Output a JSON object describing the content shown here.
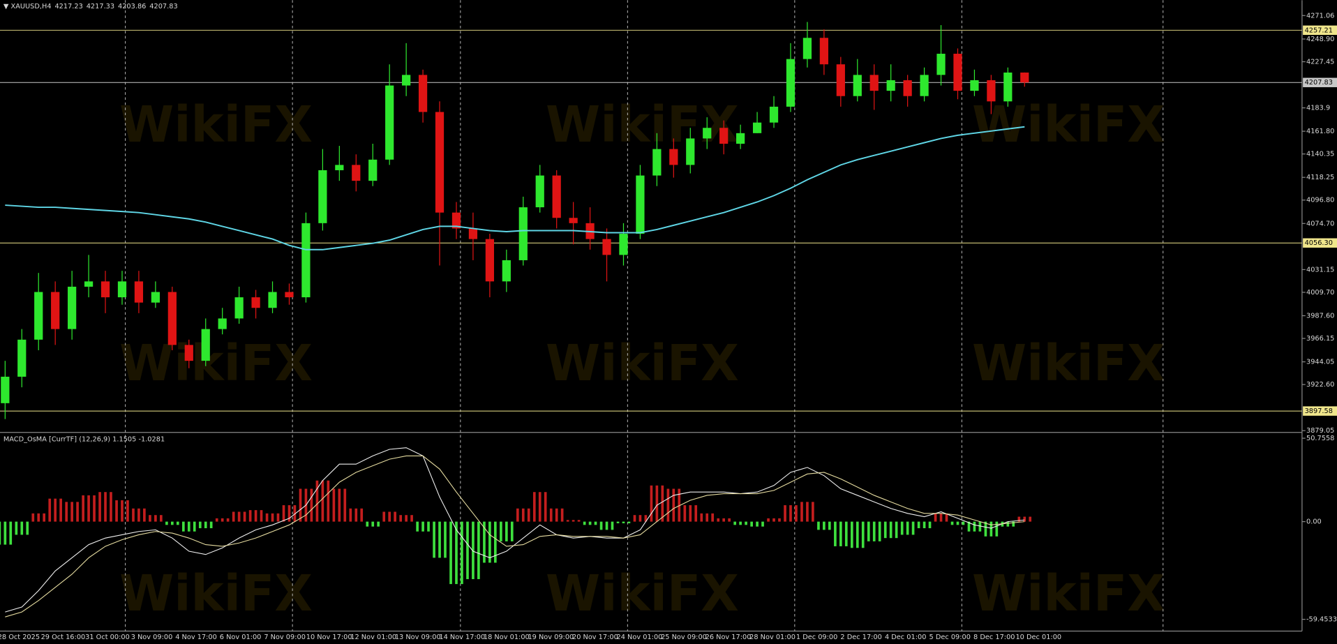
{
  "watermark": "WikiFX",
  "chart_data": [
    {
      "type": "candlestick",
      "symbol": "XAUUSD,H4",
      "open": [
        3905,
        3930,
        3965,
        4010,
        3975,
        4015,
        4020,
        4005,
        4020,
        4000,
        4010,
        3960,
        3945,
        3975,
        3985,
        4005,
        3995,
        4010,
        4005,
        4075,
        4125,
        4130,
        4115,
        4135,
        4205,
        4215,
        4180,
        4085,
        4070,
        4060,
        4020,
        4040,
        4090,
        4120,
        4080,
        4075,
        4060,
        4045,
        4065,
        4120,
        4145,
        4130,
        4155,
        4165,
        4150,
        4160,
        4170,
        4185,
        4230,
        4250,
        4225,
        4195,
        4215,
        4200,
        4210,
        4195,
        4215,
        4235,
        4200,
        4210,
        4190,
        4217.23
      ],
      "high": [
        3945,
        3975,
        4028,
        4020,
        4030,
        4045,
        4030,
        4030,
        4030,
        4020,
        4015,
        3965,
        3985,
        3995,
        4015,
        4012,
        4020,
        4018,
        4085,
        4145,
        4148,
        4140,
        4150,
        4225,
        4245,
        4220,
        4190,
        4095,
        4085,
        4065,
        4050,
        4100,
        4130,
        4125,
        4095,
        4090,
        4070,
        4075,
        4130,
        4160,
        4155,
        4165,
        4175,
        4172,
        4168,
        4180,
        4195,
        4245,
        4265,
        4258,
        4232,
        4230,
        4225,
        4225,
        4215,
        4222,
        4262,
        4240,
        4220,
        4215,
        4222,
        4217.33
      ],
      "low": [
        3890,
        3920,
        3955,
        3960,
        3965,
        4005,
        3990,
        3998,
        3990,
        3995,
        3955,
        3938,
        3940,
        3970,
        3980,
        3985,
        3990,
        3998,
        4000,
        4068,
        4115,
        4105,
        4110,
        4130,
        4195,
        4170,
        4035,
        4060,
        4040,
        4005,
        4010,
        4035,
        4085,
        4070,
        4055,
        4050,
        4020,
        4035,
        4060,
        4110,
        4118,
        4122,
        4145,
        4140,
        4145,
        4160,
        4165,
        4180,
        4222,
        4215,
        4185,
        4190,
        4182,
        4190,
        4185,
        4190,
        4205,
        4192,
        4195,
        4178,
        4185,
        4203.86
      ],
      "close": [
        3930,
        3965,
        4010,
        3975,
        4015,
        4020,
        4005,
        4020,
        4000,
        4010,
        3960,
        3945,
        3975,
        3985,
        4005,
        3995,
        4010,
        4005,
        4075,
        4125,
        4130,
        4115,
        4135,
        4205,
        4215,
        4180,
        4085,
        4070,
        4060,
        4020,
        4040,
        4090,
        4120,
        4080,
        4075,
        4060,
        4045,
        4065,
        4120,
        4145,
        4130,
        4155,
        4165,
        4150,
        4160,
        4170,
        4185,
        4230,
        4250,
        4225,
        4195,
        4215,
        4200,
        4210,
        4195,
        4215,
        4235,
        4200,
        4210,
        4190,
        4217.23,
        4207.83
      ],
      "up_color": "#2ee82e",
      "down_color": "#e01414",
      "ma": {
        "color": "#5fd6e6",
        "values": [
          4092,
          4091,
          4090,
          4090,
          4089,
          4088,
          4087,
          4086,
          4085,
          4083,
          4081,
          4079,
          4076,
          4072,
          4068,
          4064,
          4060,
          4054,
          4050,
          4050,
          4052,
          4054,
          4056,
          4059,
          4064,
          4069,
          4072,
          4072,
          4070,
          4068,
          4067,
          4068,
          4068,
          4068,
          4068,
          4067,
          4066,
          4066,
          4066,
          4069,
          4073,
          4077,
          4081,
          4085,
          4090,
          4095,
          4101,
          4108,
          4116,
          4123,
          4130,
          4135,
          4139,
          4143,
          4147,
          4151,
          4155,
          4158,
          4160,
          4162,
          4164,
          4166
        ]
      },
      "levels": {
        "values": [
          4257.21,
          4056.3,
          3897.58,
          4207.83
        ],
        "value_labels": [
          "4257.21",
          "4056.30",
          "3897.58",
          "4207.83"
        ],
        "colors": [
          "#f0e68c",
          "#f0e68c",
          "#f0e68c",
          "#c8c8c8"
        ]
      },
      "ylim": [
        3877.4,
        4285.6
      ],
      "yticks": [
        4271.06,
        {
          "value": 4248.9,
          "label": "4248.90"
        },
        4227.45,
        4183.9,
        {
          "value": 4161.8,
          "label": "4161.80"
        },
        4140.35,
        4118.25,
        {
          "value": 4096.8,
          "label": "4096.80"
        },
        {
          "value": 4074.7,
          "label": "4074.70"
        },
        4031.15,
        {
          "value": 4009.7,
          "label": "4009.70"
        },
        {
          "value": 3987.6,
          "label": "3987.60"
        },
        3966.15,
        3944.05,
        {
          "value": 3922.6,
          "label": "3922.60"
        },
        3879.05
      ],
      "x_tick_labels": [
        "28 Oct 2025",
        "29 Oct 16:00",
        "31 Oct 00:00",
        "3 Nov 09:00",
        "4 Nov 17:00",
        "6 Nov 01:00",
        "7 Nov 09:00",
        "10 Nov 17:00",
        "12 Nov 01:00",
        "13 Nov 09:00",
        "14 Nov 17:00",
        "18 Nov 01:00",
        "19 Nov 09:00",
        "20 Nov 17:00",
        "24 Nov 01:00",
        "25 Nov 09:00",
        "26 Nov 17:00",
        "28 Nov 01:00",
        "1 Dec 09:00",
        "2 Dec 17:00",
        "4 Dec 01:00",
        "5 Dec 09:00",
        "8 Dec 17:00",
        "10 Dec 01:00"
      ]
    },
    {
      "type": "macd",
      "title": "MACD_OsMA [CurrTF] (12,26,9) 1.1505 -1.0281",
      "histogram": {
        "up_color": "#c41e1e",
        "down_color": "#3ee03e",
        "values": [
          -14,
          -8,
          5,
          14,
          12,
          16,
          18,
          13,
          8,
          4,
          -2,
          -6,
          -4,
          2,
          6,
          7,
          5,
          10,
          20,
          25,
          20,
          8,
          -3,
          6,
          4,
          -6,
          -22,
          -38,
          -35,
          -25,
          -12,
          8,
          18,
          8,
          1,
          -2,
          -5,
          -1,
          4,
          22,
          20,
          10,
          5,
          2,
          -2,
          -3,
          2,
          10,
          12,
          -5,
          -15,
          -16,
          -12,
          -10,
          -8,
          -4,
          5,
          -2,
          -6,
          -9,
          -3,
          3
        ]
      },
      "series": [
        {
          "color": "#f0f0f0",
          "values": [
            -55,
            -52,
            -42,
            -30,
            -22,
            -14,
            -10,
            -8,
            -6,
            -5,
            -10,
            -18,
            -20,
            -16,
            -10,
            -5,
            -2,
            2,
            10,
            25,
            35,
            35,
            40,
            44,
            45,
            40,
            15,
            -5,
            -18,
            -22,
            -18,
            -10,
            -2,
            -8,
            -10,
            -9,
            -10,
            -10,
            -5,
            10,
            16,
            18,
            18,
            18,
            17,
            18,
            22,
            30,
            33,
            28,
            20,
            16,
            12,
            8,
            5,
            3,
            6,
            2,
            -2,
            -4,
            0,
            1
          ]
        },
        {
          "color": "#e6dca0",
          "values": [
            -58,
            -55,
            -48,
            -40,
            -32,
            -22,
            -15,
            -11,
            -8,
            -6,
            -7,
            -10,
            -14,
            -15,
            -13,
            -10,
            -6,
            -2,
            4,
            14,
            24,
            30,
            34,
            38,
            40,
            40,
            32,
            18,
            5,
            -8,
            -15,
            -14,
            -9,
            -8,
            -9,
            -9,
            -9,
            -10,
            -8,
            0,
            8,
            13,
            16,
            17,
            17,
            17,
            19,
            24,
            29,
            30,
            26,
            21,
            16,
            12,
            8,
            5,
            5,
            4,
            1,
            -2,
            -1,
            0
          ]
        }
      ],
      "ylim": [
        -66.6,
        54.3
      ],
      "yticks": [
        50.7558,
        {
          "value": 0,
          "label": "0.00"
        },
        -59.4533
      ]
    }
  ]
}
